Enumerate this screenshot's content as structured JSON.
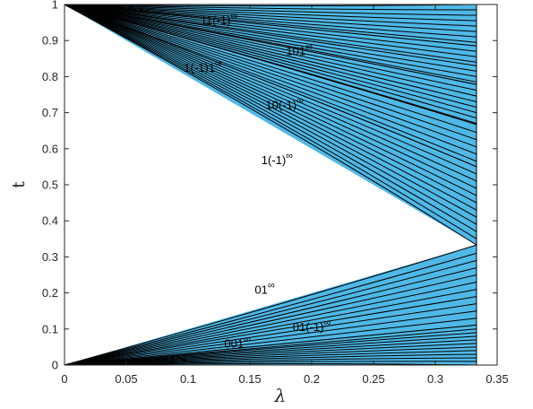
{
  "chart_data": {
    "type": "line",
    "title": "",
    "xlabel": "λ",
    "ylabel": "t",
    "xlim": [
      0,
      0.35
    ],
    "ylim": [
      0,
      1
    ],
    "x_ticks": [
      "0",
      "0.05",
      "0.1",
      "0.15",
      "0.2",
      "0.25",
      "0.3",
      "0.35"
    ],
    "y_ticks": [
      "0",
      "0.1",
      "0.2",
      "0.3",
      "0.4",
      "0.5",
      "0.6",
      "0.7",
      "0.8",
      "0.9",
      "1"
    ],
    "grid": false,
    "legend": "none",
    "fill_color": "#4FB8E6",
    "line_color": "#000000",
    "lambda_max": 0.3333,
    "families": [
      {
        "name": "11(-1)∞",
        "start_t": 1,
        "end_t": [
          1.0,
          0.985,
          0.97,
          0.955,
          0.94,
          0.925,
          0.91,
          0.895,
          0.885
        ]
      },
      {
        "name": "101∞",
        "start_t": 1,
        "end_t": [
          0.885,
          0.87,
          0.855,
          0.84,
          0.83,
          0.815,
          0.8,
          0.785,
          0.778
        ]
      },
      {
        "name": "1(-1)1∞",
        "start_t": 1,
        "end_t": [
          0.778,
          0.762,
          0.746,
          0.73,
          0.715,
          0.7,
          0.685,
          0.67,
          0.667
        ]
      },
      {
        "name": "10(-1)∞",
        "start_t": 1,
        "end_t": [
          0.667,
          0.645,
          0.625,
          0.605,
          0.585,
          0.565,
          0.55
        ]
      },
      {
        "name": "1(-1)∞",
        "start_t": 1,
        "end_t": [
          0.55,
          0.53,
          0.51,
          0.49,
          0.47,
          0.45,
          0.43,
          0.41,
          0.39,
          0.37,
          0.35,
          0.333
        ]
      },
      {
        "name": "01∞",
        "start_t": 0,
        "end_t": [
          0.333,
          0.31,
          0.29,
          0.27,
          0.25,
          0.23,
          0.21,
          0.19,
          0.17,
          0.15,
          0.13,
          0.111
        ]
      },
      {
        "name": "01(-1)∞",
        "start_t": 0,
        "end_t": [
          0.111,
          0.1,
          0.09,
          0.08,
          0.07,
          0.06,
          0.05,
          0.04,
          0.03,
          0.02,
          0.01,
          0.0
        ]
      }
    ],
    "annotations": [
      {
        "base": "11(-1)",
        "sup": "∞",
        "x": 0.125,
        "y": 0.945
      },
      {
        "base": "101",
        "sup": "∞",
        "x": 0.19,
        "y": 0.86
      },
      {
        "base": "1(-1)1",
        "sup": "∞",
        "x": 0.112,
        "y": 0.813
      },
      {
        "base": "10(-1)",
        "sup": "∞",
        "x": 0.178,
        "y": 0.71
      },
      {
        "base": "1(-1)",
        "sup": "∞",
        "x": 0.172,
        "y": 0.557
      },
      {
        "base": "01",
        "sup": "∞",
        "x": 0.162,
        "y": 0.198
      },
      {
        "base": "01(-1)",
        "sup": "∞",
        "x": 0.2,
        "y": 0.094
      },
      {
        "base": "001",
        "sup": "∞",
        "x": 0.14,
        "y": 0.048
      }
    ]
  }
}
